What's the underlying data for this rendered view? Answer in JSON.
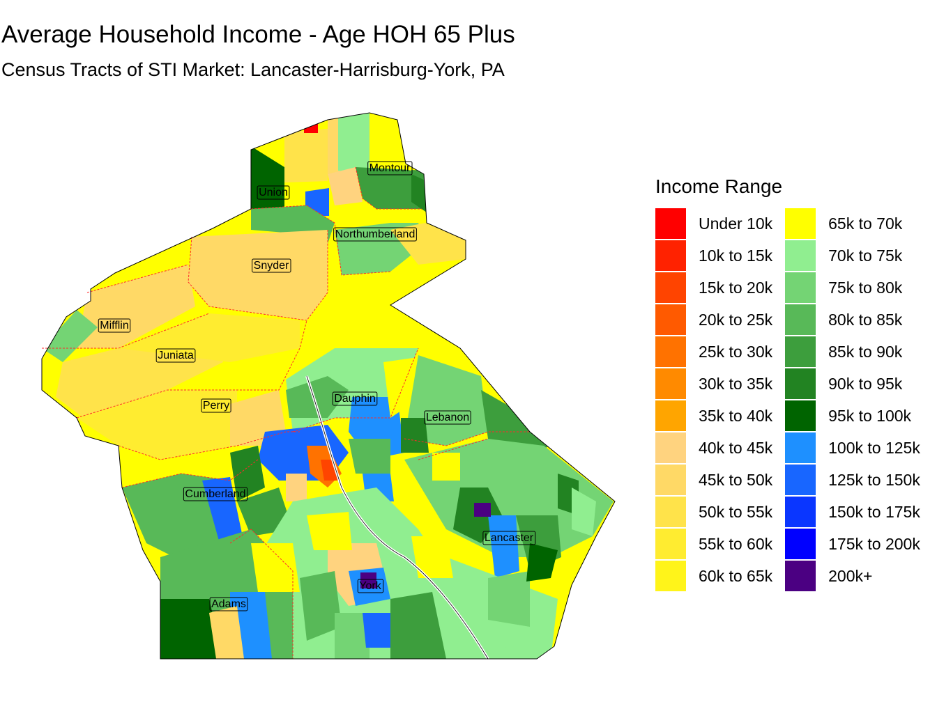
{
  "map": {
    "title": "Average Household Income - Age HOH 65 Plus",
    "subtitle": "Census Tracts of STI Market: Lancaster-Harrisburg-York, PA",
    "counties": [
      {
        "name": "Montour"
      },
      {
        "name": "Union"
      },
      {
        "name": "Northumberland"
      },
      {
        "name": "Snyder"
      },
      {
        "name": "Mifflin"
      },
      {
        "name": "Juniata"
      },
      {
        "name": "Dauphin"
      },
      {
        "name": "Perry"
      },
      {
        "name": "Lebanon"
      },
      {
        "name": "Cumberland"
      },
      {
        "name": "Lancaster"
      },
      {
        "name": "York"
      },
      {
        "name": "Adams"
      }
    ]
  },
  "legend": {
    "title": "Income Range",
    "items": [
      {
        "label": "Under 10k",
        "color": "#ff0000"
      },
      {
        "label": "10k to 15k",
        "color": "#ff2200"
      },
      {
        "label": "15k to 20k",
        "color": "#ff4400"
      },
      {
        "label": "20k to 25k",
        "color": "#ff5a00"
      },
      {
        "label": "25k to 30k",
        "color": "#ff7200"
      },
      {
        "label": "30k to 35k",
        "color": "#ff8a00"
      },
      {
        "label": "35k to 40k",
        "color": "#ffa500"
      },
      {
        "label": "40k to 45k",
        "color": "#ffd37f"
      },
      {
        "label": "45k to 50k",
        "color": "#ffd966"
      },
      {
        "label": "50k to 55k",
        "color": "#ffe34a"
      },
      {
        "label": "55k to 60k",
        "color": "#ffec30"
      },
      {
        "label": "60k to 65k",
        "color": "#fff41a"
      },
      {
        "label": "65k to 70k",
        "color": "#ffff00"
      },
      {
        "label": "70k to 75k",
        "color": "#90ee90"
      },
      {
        "label": "75k to 80k",
        "color": "#74d474"
      },
      {
        "label": "80k to 85k",
        "color": "#58b958"
      },
      {
        "label": "85k to 90k",
        "color": "#3d9e3d"
      },
      {
        "label": "90k to 95k",
        "color": "#228322"
      },
      {
        "label": "95k to 100k",
        "color": "#006400"
      },
      {
        "label": "100k to 125k",
        "color": "#1e90ff"
      },
      {
        "label": "125k to 150k",
        "color": "#1866ff"
      },
      {
        "label": "150k to 175k",
        "color": "#0a36ff"
      },
      {
        "label": "175k to 200k",
        "color": "#0000ff"
      },
      {
        "label": "200k+",
        "color": "#4b0082"
      }
    ]
  }
}
